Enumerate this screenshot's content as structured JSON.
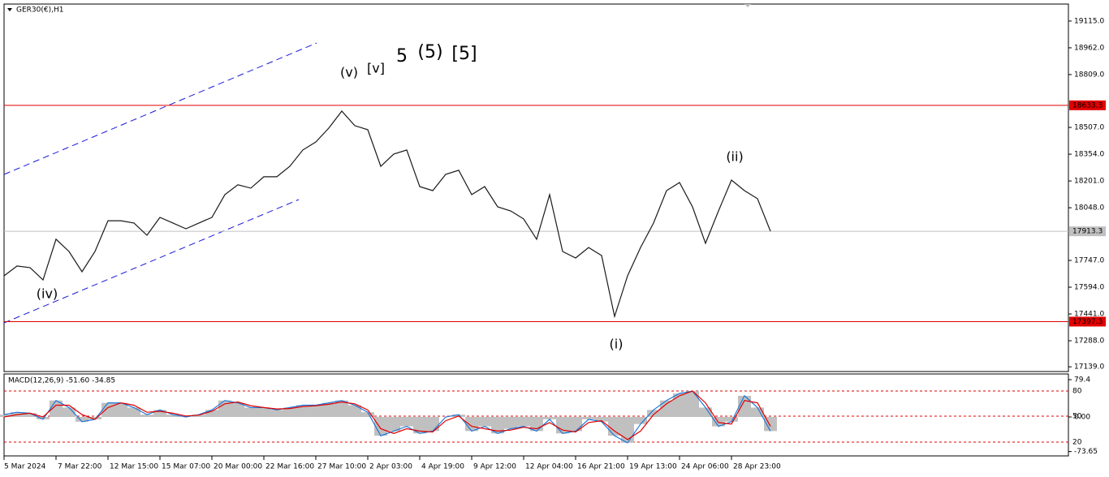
{
  "chart_data": [
    {
      "type": "line",
      "title": "GER30(€),H1",
      "categories": [
        "5 Mar 2024",
        null,
        null,
        null,
        "7 Mar 22:00",
        null,
        null,
        null,
        "12 Mar 15:00",
        null,
        null,
        null,
        "15 Mar 07:00",
        null,
        null,
        null,
        "20 Mar 00:00",
        null,
        null,
        null,
        "22 Mar 16:00",
        null,
        null,
        null,
        "27 Mar 10:00",
        null,
        null,
        null,
        "2 Apr 03:00",
        null,
        null,
        null,
        "4 Apr 19:00",
        null,
        null,
        null,
        "9 Apr 12:00",
        null,
        null,
        null,
        "12 Apr 04:00",
        null,
        null,
        null,
        "16 Apr 21:00",
        null,
        null,
        null,
        "19 Apr 13:00",
        null,
        null,
        null,
        "24 Apr 06:00",
        null,
        null,
        null,
        "28 Apr 23:00",
        null,
        null,
        null
      ],
      "values": [
        17659,
        17715,
        17706,
        17636,
        17868,
        17798,
        17682,
        17798,
        17974,
        17974,
        17961,
        17891,
        17993,
        17961,
        17928,
        17961,
        17993,
        18123,
        18179,
        18160,
        18225,
        18225,
        18285,
        18378,
        18424,
        18503,
        18600,
        18517,
        18494,
        18285,
        18355,
        18378,
        18169,
        18146,
        18239,
        18262,
        18123,
        18169,
        18053,
        18030,
        17984,
        17868,
        18123,
        17798,
        17761,
        17821,
        17775,
        17427,
        17659,
        17821,
        17961,
        18146,
        18192,
        18053,
        17845,
        18030,
        18206,
        18146,
        18100,
        17914
      ],
      "color": "#1a1a1a",
      "ylim": [
        17112,
        19212
      ],
      "yticks": [
        {
          "value": 19115,
          "label": "19115.0"
        },
        {
          "value": 18962,
          "label": "18962.0"
        },
        {
          "value": 18809,
          "label": "18809.0"
        },
        {
          "value": 18507,
          "label": "18507.0"
        },
        {
          "value": 18354,
          "label": "18354.0"
        },
        {
          "value": 18201,
          "label": "18201.0"
        },
        {
          "value": 18048,
          "label": "18048.0"
        },
        {
          "value": 17747,
          "label": "17747.0"
        },
        {
          "value": 17594,
          "label": "17594.0"
        },
        {
          "value": 17441,
          "label": "17441.0"
        },
        {
          "value": 17288,
          "label": "17288.0"
        },
        {
          "value": 17139,
          "label": "17139.0"
        }
      ],
      "price_lines": [
        {
          "value": 18633.3,
          "color": "#e00000"
        },
        {
          "value": 17913.3,
          "color": "#c0c0c0"
        },
        {
          "value": 17397.3,
          "color": "#e00000"
        }
      ],
      "annotations": [
        {
          "text": "(iv)",
          "color": "#1a1adc"
        },
        {
          "text": "(v)",
          "color": "#1a1adc"
        },
        {
          "text": "[v]",
          "color": "#1e8c1e"
        },
        {
          "text": "5",
          "color": "#1a1adc"
        },
        {
          "text": "(5)",
          "color": "#e00000"
        },
        {
          "text": "[5]",
          "color": "#000000"
        },
        {
          "text": "(ii)",
          "color": "#1a1adc"
        },
        {
          "text": "(i)",
          "color": "#1a1adc"
        }
      ]
    },
    {
      "type": "macd",
      "title": "MACD(12,26,9) -51.60 -34.85",
      "series": [
        {
          "style": "bar",
          "color": "#c0c0c0",
          "line_color": "#1e78d8",
          "values": [
            5,
            10,
            8,
            -5,
            35,
            20,
            -10,
            -5,
            30,
            30,
            20,
            5,
            15,
            5,
            0,
            5,
            15,
            35,
            30,
            20,
            20,
            15,
            20,
            25,
            25,
            30,
            35,
            25,
            10,
            -40,
            -30,
            -20,
            -35,
            -30,
            0,
            5,
            -30,
            -20,
            -35,
            -25,
            -20,
            -30,
            -5,
            -35,
            -30,
            -5,
            -10,
            -40,
            -55,
            -15,
            15,
            35,
            50,
            55,
            20,
            -20,
            -10,
            45,
            20,
            -30
          ]
        },
        {
          "style": "line",
          "color": "#e00000",
          "values": [
            0,
            5,
            8,
            0,
            25,
            25,
            5,
            -5,
            20,
            30,
            25,
            10,
            12,
            8,
            2,
            4,
            12,
            28,
            32,
            24,
            20,
            17,
            18,
            22,
            24,
            27,
            32,
            28,
            15,
            -25,
            -35,
            -25,
            -30,
            -32,
            -8,
            2,
            -20,
            -25,
            -30,
            -28,
            -22,
            -25,
            -12,
            -28,
            -32,
            -12,
            -8,
            -30,
            -48,
            -30,
            5,
            28,
            45,
            55,
            30,
            -12,
            -15,
            35,
            30,
            -20
          ]
        }
      ],
      "ylim": [
        -82.9,
        91.5
      ],
      "yticks": [
        79.4,
        {
          "value": 0,
          "label": "0.00"
        },
        -73.65
      ],
      "level_labels": [
        "80",
        "50",
        "20"
      ]
    }
  ]
}
